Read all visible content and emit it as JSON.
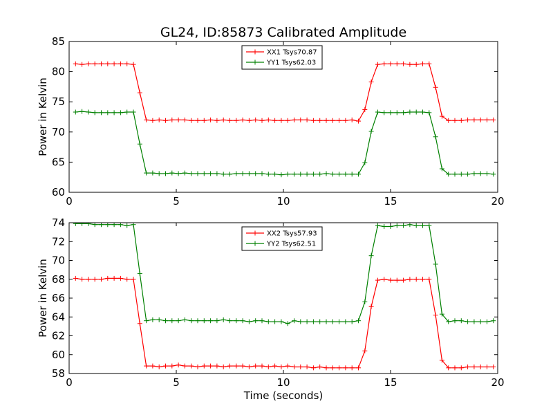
{
  "figure": {
    "title": "GL24, ID:85873 Calibrated Amplitude"
  },
  "chart_data": [
    {
      "type": "line",
      "title": "GL24, ID:85873 Calibrated Amplitude",
      "xlabel": "",
      "ylabel": "Power in Kelvin",
      "xlim": [
        0,
        20
      ],
      "ylim": [
        60,
        85
      ],
      "xticks": [
        0,
        5,
        10,
        15,
        20
      ],
      "yticks": [
        60,
        65,
        70,
        75,
        80,
        85
      ],
      "grid": false,
      "legend_position": "upper center",
      "marker": "+",
      "x": [
        0.3,
        0.6,
        0.9,
        1.2,
        1.5,
        1.8,
        2.1,
        2.4,
        2.7,
        3.0,
        3.3,
        3.6,
        3.9,
        4.2,
        4.5,
        4.8,
        5.1,
        5.4,
        5.7,
        6.0,
        6.3,
        6.6,
        6.9,
        7.2,
        7.5,
        7.8,
        8.1,
        8.4,
        8.7,
        9.0,
        9.3,
        9.6,
        9.9,
        10.2,
        10.5,
        10.8,
        11.1,
        11.4,
        11.7,
        12.0,
        12.3,
        12.6,
        12.9,
        13.2,
        13.5,
        13.8,
        14.1,
        14.4,
        14.7,
        15.0,
        15.3,
        15.6,
        15.9,
        16.2,
        16.5,
        16.8,
        17.1,
        17.4,
        17.7,
        18.0,
        18.3,
        18.6,
        18.9,
        19.2,
        19.5,
        19.8
      ],
      "series": [
        {
          "name": "XX1 Tsys70.87",
          "color": "#ff0000",
          "values": [
            81.3,
            81.2,
            81.3,
            81.3,
            81.3,
            81.3,
            81.3,
            81.3,
            81.3,
            81.2,
            76.5,
            72.0,
            71.9,
            72.0,
            71.9,
            72.0,
            72.0,
            72.0,
            71.9,
            71.9,
            71.9,
            72.0,
            71.9,
            72.0,
            71.9,
            71.9,
            72.0,
            71.9,
            72.0,
            71.9,
            72.0,
            71.9,
            71.9,
            71.9,
            72.0,
            72.0,
            72.0,
            71.9,
            71.9,
            71.9,
            71.9,
            71.9,
            71.9,
            72.0,
            71.8,
            73.7,
            78.3,
            81.2,
            81.3,
            81.3,
            81.3,
            81.3,
            81.2,
            81.2,
            81.3,
            81.3,
            77.4,
            72.6,
            71.9,
            71.9,
            71.9,
            72.0,
            72.0,
            72.0,
            72.0,
            72.0
          ]
        },
        {
          "name": "YY1 Tsys62.03",
          "color": "#008000",
          "values": [
            73.3,
            73.4,
            73.3,
            73.2,
            73.2,
            73.2,
            73.2,
            73.2,
            73.3,
            73.3,
            68.0,
            63.2,
            63.2,
            63.1,
            63.1,
            63.2,
            63.1,
            63.2,
            63.1,
            63.1,
            63.1,
            63.1,
            63.1,
            63.0,
            63.0,
            63.1,
            63.1,
            63.1,
            63.1,
            63.1,
            63.0,
            63.0,
            62.9,
            63.0,
            63.0,
            63.0,
            63.0,
            63.0,
            63.0,
            63.1,
            63.0,
            63.0,
            63.0,
            63.0,
            63.0,
            64.9,
            70.1,
            73.3,
            73.2,
            73.2,
            73.2,
            73.2,
            73.3,
            73.3,
            73.3,
            73.2,
            69.2,
            63.9,
            63.0,
            63.0,
            63.0,
            63.0,
            63.1,
            63.1,
            63.1,
            63.0
          ]
        }
      ]
    },
    {
      "type": "line",
      "title": "",
      "xlabel": "Time (seconds)",
      "ylabel": "Power in Kelvin",
      "xlim": [
        0,
        20
      ],
      "ylim": [
        58,
        74
      ],
      "xticks": [
        0,
        5,
        10,
        15,
        20
      ],
      "yticks": [
        58,
        60,
        62,
        64,
        66,
        68,
        70,
        72,
        74
      ],
      "grid": false,
      "legend_position": "upper center",
      "marker": "+",
      "x": [
        0.3,
        0.6,
        0.9,
        1.2,
        1.5,
        1.8,
        2.1,
        2.4,
        2.7,
        3.0,
        3.3,
        3.6,
        3.9,
        4.2,
        4.5,
        4.8,
        5.1,
        5.4,
        5.7,
        6.0,
        6.3,
        6.6,
        6.9,
        7.2,
        7.5,
        7.8,
        8.1,
        8.4,
        8.7,
        9.0,
        9.3,
        9.6,
        9.9,
        10.2,
        10.5,
        10.8,
        11.1,
        11.4,
        11.7,
        12.0,
        12.3,
        12.6,
        12.9,
        13.2,
        13.5,
        13.8,
        14.1,
        14.4,
        14.7,
        15.0,
        15.3,
        15.6,
        15.9,
        16.2,
        16.5,
        16.8,
        17.1,
        17.4,
        17.7,
        18.0,
        18.3,
        18.6,
        18.9,
        19.2,
        19.5,
        19.8
      ],
      "series": [
        {
          "name": "XX2 Tsys57.93",
          "color": "#ff0000",
          "values": [
            68.1,
            68.0,
            68.0,
            68.0,
            68.0,
            68.1,
            68.1,
            68.1,
            68.0,
            68.0,
            63.3,
            58.8,
            58.8,
            58.7,
            58.8,
            58.8,
            58.9,
            58.8,
            58.8,
            58.7,
            58.8,
            58.8,
            58.8,
            58.7,
            58.8,
            58.8,
            58.8,
            58.7,
            58.8,
            58.8,
            58.7,
            58.8,
            58.7,
            58.8,
            58.7,
            58.7,
            58.7,
            58.6,
            58.7,
            58.6,
            58.6,
            58.6,
            58.6,
            58.6,
            58.6,
            60.4,
            65.1,
            67.9,
            68.0,
            67.9,
            67.9,
            67.9,
            68.0,
            68.0,
            68.0,
            68.0,
            64.2,
            59.4,
            58.6,
            58.6,
            58.6,
            58.7,
            58.7,
            58.7,
            58.7,
            58.7
          ]
        },
        {
          "name": "YY2 Tsys62.51",
          "color": "#008000",
          "values": [
            73.9,
            73.9,
            73.9,
            73.8,
            73.8,
            73.8,
            73.8,
            73.8,
            73.7,
            73.8,
            68.6,
            63.6,
            63.7,
            63.7,
            63.6,
            63.6,
            63.6,
            63.7,
            63.6,
            63.6,
            63.6,
            63.6,
            63.6,
            63.7,
            63.6,
            63.6,
            63.6,
            63.5,
            63.6,
            63.6,
            63.5,
            63.5,
            63.5,
            63.3,
            63.6,
            63.5,
            63.5,
            63.5,
            63.5,
            63.5,
            63.5,
            63.5,
            63.5,
            63.5,
            63.6,
            65.6,
            70.5,
            73.7,
            73.6,
            73.6,
            73.7,
            73.7,
            73.8,
            73.7,
            73.7,
            73.7,
            69.6,
            64.3,
            63.5,
            63.6,
            63.6,
            63.5,
            63.5,
            63.5,
            63.5,
            63.6
          ]
        }
      ]
    }
  ]
}
